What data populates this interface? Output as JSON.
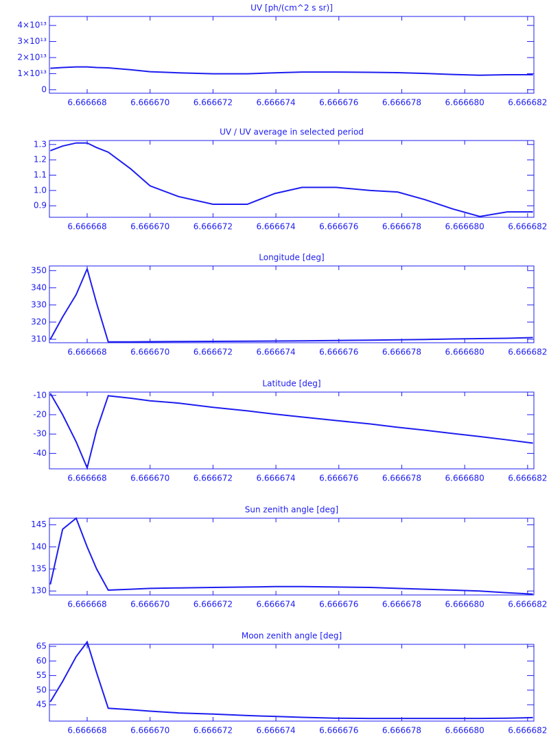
{
  "chart_data": [
    {
      "type": "line",
      "title": "UV [ph/(cm^2 s sr)]",
      "color": "#1c1cf0",
      "x": [
        6.66666683,
        6.66666722,
        6.66666765,
        6.666668,
        6.6666683,
        6.66666867,
        6.66666939,
        6.66667,
        6.66667091,
        6.666672,
        6.66667309,
        6.66667396,
        6.66667483,
        6.66667591,
        6.666677,
        6.66667787,
        6.66667874,
        6.66667961,
        6.66668048,
        6.66668135,
        6.66668217
      ],
      "values": [
        13300000000000.0,
        13800000000000.0,
        14200000000000.0,
        14200000000000.0,
        13800000000000.0,
        13600000000000.0,
        12400000000000.0,
        11200000000000.0,
        10500000000000.0,
        9900000000000.0,
        9900000000000.0,
        10500000000000.0,
        11000000000000.0,
        11000000000000.0,
        10800000000000.0,
        10600000000000.0,
        10100000000000.0,
        9500000000000.0,
        9000000000000.0,
        9300000000000.0,
        9300000000000.0
      ],
      "xlim": [
        6.6666668,
        6.6666822
      ],
      "ylim": [
        -2200000000000.0,
        45600000000000.0
      ],
      "xticks": [
        6.666668,
        {
          "value": 6.66667,
          "label": "6.666670"
        },
        6.666672,
        6.666674,
        6.666676,
        6.666678,
        {
          "value": 6.66668,
          "label": "6.666680"
        },
        6.666682
      ],
      "yticks": [
        0,
        {
          "value": 10000000000000.0,
          "label": "1×10¹³"
        },
        {
          "value": 20000000000000.0,
          "label": "2×10¹³"
        },
        {
          "value": 30000000000000.0,
          "label": "3×10¹³"
        },
        {
          "value": 40000000000000.0,
          "label": "4×10¹³"
        }
      ]
    },
    {
      "type": "line",
      "title": "UV / UV average in selected period",
      "color": "#1c1cf0",
      "x": [
        6.66666683,
        6.66666722,
        6.66666765,
        6.666668,
        6.6666683,
        6.66666867,
        6.66666939,
        6.66667,
        6.66667091,
        6.666672,
        6.66667309,
        6.66667396,
        6.66667483,
        6.66667591,
        6.666677,
        6.66667787,
        6.66667874,
        6.66667961,
        6.66668048,
        6.66668135,
        6.66668217
      ],
      "values": [
        1.26,
        1.29,
        1.31,
        1.31,
        1.28,
        1.25,
        1.14,
        1.03,
        0.96,
        0.91,
        0.91,
        0.98,
        1.02,
        1.02,
        1.0,
        0.99,
        0.94,
        0.88,
        0.83,
        0.86,
        0.86
      ],
      "xlim": [
        6.6666668,
        6.6666822
      ],
      "ylim": [
        0.825,
        1.326
      ],
      "xticks": [
        6.666668,
        {
          "value": 6.66667,
          "label": "6.666670"
        },
        6.666672,
        6.666674,
        6.666676,
        6.666678,
        {
          "value": 6.66668,
          "label": "6.666680"
        },
        6.666682
      ],
      "yticks": [
        0.9,
        {
          "value": 1,
          "label": "1.0"
        },
        1.1,
        1.2,
        1.3
      ]
    },
    {
      "type": "line",
      "title": "Longitude [deg]",
      "color": "#1c1cf0",
      "x": [
        6.66666683,
        6.66666722,
        6.66666765,
        6.666668,
        6.6666683,
        6.66666867,
        6.66666939,
        6.66667,
        6.66667091,
        6.666672,
        6.66667309,
        6.66667396,
        6.66667483,
        6.66667591,
        6.666677,
        6.66667787,
        6.66667874,
        6.66667961,
        6.66668048,
        6.66668135,
        6.66668217
      ],
      "values": [
        310,
        323,
        336,
        351,
        331,
        308.5,
        308.5,
        308.6,
        308.7,
        308.8,
        308.9,
        309.0,
        309.1,
        309.3,
        309.5,
        309.7,
        309.9,
        310.2,
        310.4,
        310.6,
        311
      ],
      "xlim": [
        6.6666668,
        6.6666822
      ],
      "ylim": [
        308,
        352.7
      ],
      "xticks": [
        6.666668,
        {
          "value": 6.66667,
          "label": "6.666670"
        },
        6.666672,
        6.666674,
        6.666676,
        6.666678,
        {
          "value": 6.66668,
          "label": "6.666680"
        },
        6.666682
      ],
      "yticks": [
        310,
        320,
        330,
        340,
        350
      ]
    },
    {
      "type": "line",
      "title": "Latitude [deg]",
      "color": "#1c1cf0",
      "x": [
        6.66666683,
        6.66666722,
        6.66666765,
        6.666668,
        6.6666683,
        6.66666867,
        6.66666939,
        6.66667,
        6.66667091,
        6.666672,
        6.66667309,
        6.66667396,
        6.66667483,
        6.66667591,
        6.666677,
        6.66667787,
        6.66667874,
        6.66667961,
        6.66668048,
        6.66668135,
        6.66668217
      ],
      "values": [
        -9,
        -20,
        -34,
        -47.5,
        -28,
        -10.2,
        -11.5,
        -12.8,
        -14,
        -16.2,
        -18,
        -19.7,
        -21.2,
        -23,
        -24.8,
        -26.5,
        -28,
        -29.7,
        -31.3,
        -33,
        -34.7
      ],
      "xlim": [
        6.6666668,
        6.6666822
      ],
      "ylim": [
        -48,
        -8.3
      ],
      "xticks": [
        6.666668,
        {
          "value": 6.66667,
          "label": "6.666670"
        },
        6.666672,
        6.666674,
        6.666676,
        6.666678,
        {
          "value": 6.66668,
          "label": "6.666680"
        },
        6.666682
      ],
      "yticks": [
        -40,
        -30,
        -20,
        -10
      ]
    },
    {
      "type": "line",
      "title": "Sun zenith angle [deg]",
      "color": "#1c1cf0",
      "x": [
        6.66666683,
        6.66666722,
        6.66666765,
        6.666668,
        6.6666683,
        6.66666867,
        6.66666939,
        6.66667,
        6.66667091,
        6.666672,
        6.66667309,
        6.66667396,
        6.66667483,
        6.66667591,
        6.666677,
        6.66667787,
        6.66667874,
        6.66667961,
        6.66668048,
        6.66668135,
        6.66668217
      ],
      "values": [
        131.5,
        144,
        146.5,
        140,
        135,
        130.2,
        130.4,
        130.6,
        130.7,
        130.8,
        130.9,
        131,
        131,
        130.9,
        130.8,
        130.6,
        130.4,
        130.2,
        130,
        129.6,
        129.3
      ],
      "xlim": [
        6.6666668,
        6.6666822
      ],
      "ylim": [
        129.1,
        146.5
      ],
      "xticks": [
        6.666668,
        {
          "value": 6.66667,
          "label": "6.666670"
        },
        6.666672,
        6.666674,
        6.666676,
        6.666678,
        {
          "value": 6.66668,
          "label": "6.666680"
        },
        6.666682
      ],
      "yticks": [
        130,
        135,
        140,
        145
      ]
    },
    {
      "type": "line",
      "title": "Moon zenith angle [deg]",
      "color": "#1c1cf0",
      "x": [
        6.66666683,
        6.66666722,
        6.66666765,
        6.666668,
        6.6666683,
        6.66666867,
        6.66666939,
        6.66667,
        6.66667091,
        6.666672,
        6.66667309,
        6.66667396,
        6.66667483,
        6.66667591,
        6.666677,
        6.66667787,
        6.66667874,
        6.66667961,
        6.66668048,
        6.66668135,
        6.66668217
      ],
      "values": [
        46,
        53,
        61.5,
        66.5,
        56,
        43.8,
        43.3,
        42.8,
        42.2,
        41.8,
        41.3,
        41,
        40.7,
        40.4,
        40.3,
        40.3,
        40.3,
        40.3,
        40.3,
        40.4,
        40.6
      ],
      "xlim": [
        6.6666668,
        6.6666822
      ],
      "ylim": [
        39.4,
        65.7
      ],
      "xticks": [
        6.666668,
        {
          "value": 6.66667,
          "label": "6.666670"
        },
        6.666672,
        6.666674,
        6.666676,
        6.666678,
        {
          "value": 6.66668,
          "label": "6.666680"
        },
        6.666682
      ],
      "yticks": [
        45,
        50,
        55,
        60,
        65
      ]
    }
  ]
}
